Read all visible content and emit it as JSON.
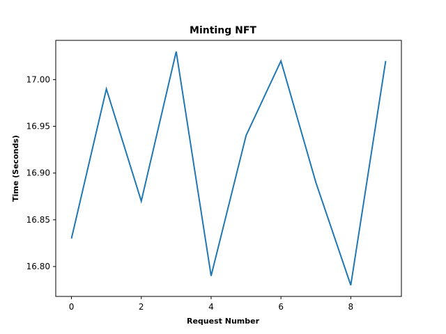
{
  "chart_data": {
    "type": "line",
    "title": "Minting NFT",
    "xlabel": "Request Number",
    "ylabel": "Time (Seconds)",
    "x": [
      0,
      1,
      2,
      3,
      4,
      5,
      6,
      7,
      8,
      9
    ],
    "series": [
      {
        "values": [
          16.83,
          16.99,
          16.87,
          17.03,
          16.79,
          16.94,
          17.02,
          16.89,
          16.78,
          17.02
        ],
        "color": "#1f77b4"
      }
    ],
    "xlim": [
      -0.45,
      9.45
    ],
    "ylim": [
      16.768,
      17.042
    ],
    "xticks": [
      0,
      2,
      4,
      6,
      8
    ],
    "yticks": [
      16.8,
      16.85,
      16.9,
      16.95,
      17.0
    ],
    "ytick_labels": [
      "16.80",
      "16.85",
      "16.90",
      "16.95",
      "17.00"
    ],
    "xtick_labels": [
      "0",
      "2",
      "4",
      "6",
      "8"
    ],
    "grid": false,
    "legend": "none"
  }
}
